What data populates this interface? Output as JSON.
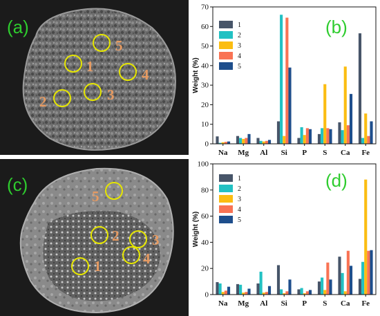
{
  "panel_labels": {
    "a": "(a)",
    "b": "(b)",
    "c": "(c)",
    "d": "(d)"
  },
  "sem_a_spots": [
    "1",
    "2",
    "3",
    "4",
    "5"
  ],
  "sem_c_spots": [
    "1",
    "2",
    "3",
    "4",
    "5"
  ],
  "colors": {
    "s1": "#475569",
    "s2": "#22c1c3",
    "s3": "#fbbd12",
    "s4": "#f97354",
    "s5": "#1e4e8c",
    "spot_circle": "#e6e600",
    "spot_number": "#e59a62",
    "panel_letter": "#2ecc2e"
  },
  "chart_data": [
    {
      "type": "bar",
      "panel": "(b)",
      "ylabel": "Weight (%)",
      "ylim": [
        0,
        70
      ],
      "yticks": [
        "0",
        "10",
        "20",
        "30",
        "40",
        "50",
        "60",
        "70"
      ],
      "categories": [
        "Na",
        "Mg",
        "Al",
        "Si",
        "P",
        "S",
        "Ca",
        "Fe"
      ],
      "legend_position": "top-right",
      "series": [
        {
          "name": "1",
          "values": [
            3.8,
            4.0,
            3.0,
            11.5,
            3.0,
            5.0,
            11.0,
            56.5
          ]
        },
        {
          "name": "2",
          "values": [
            0.5,
            3.0,
            1.5,
            66.0,
            8.5,
            8.0,
            7.0,
            3.0
          ]
        },
        {
          "name": "3",
          "values": [
            0.8,
            2.5,
            1.2,
            4.0,
            4.5,
            30.5,
            39.5,
            15.5
          ]
        },
        {
          "name": "4",
          "values": [
            1.0,
            3.0,
            1.5,
            64.5,
            8.0,
            8.0,
            9.5,
            4.0
          ]
        },
        {
          "name": "5",
          "values": [
            1.2,
            5.0,
            2.0,
            39.0,
            7.5,
            7.5,
            25.5,
            11.5
          ]
        }
      ]
    },
    {
      "type": "bar",
      "panel": "(d)",
      "ylabel": "Weight (%)",
      "ylim": [
        0,
        100
      ],
      "yticks": [
        "0",
        "20",
        "40",
        "60",
        "80",
        "100"
      ],
      "categories": [
        "Na",
        "Mg",
        "Al",
        "Si",
        "P",
        "S",
        "Ca",
        "Fe"
      ],
      "legend_position": "top-right",
      "series": [
        {
          "name": "1",
          "values": [
            9.5,
            8.0,
            8.5,
            22.5,
            4.0,
            10.0,
            29.0,
            12.0
          ]
        },
        {
          "name": "2",
          "values": [
            8.5,
            7.5,
            17.5,
            4.0,
            5.0,
            13.0,
            16.5,
            25.0
          ]
        },
        {
          "name": "3",
          "values": [
            2.0,
            1.5,
            1.5,
            1.0,
            1.0,
            3.5,
            2.5,
            88.0
          ]
        },
        {
          "name": "4",
          "values": [
            3.0,
            2.0,
            2.0,
            2.5,
            2.5,
            24.5,
            33.5,
            33.5
          ]
        },
        {
          "name": "5",
          "values": [
            6.0,
            4.5,
            6.5,
            11.5,
            3.5,
            11.5,
            22.0,
            34.0
          ]
        }
      ]
    }
  ]
}
